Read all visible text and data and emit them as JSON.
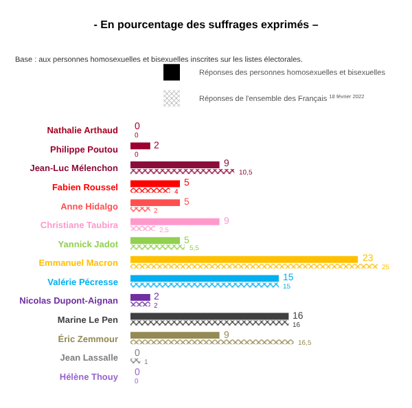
{
  "chart_data": {
    "type": "bar",
    "orientation": "horizontal",
    "title": "- En pourcentage des suffrages exprimés –",
    "annotations": [
      "Base : aux personnes homosexuelles et bisexuelles inscrites sur les listes électorales."
    ],
    "categories": [
      "Nathalie Arthaud",
      "Philippe Poutou",
      "Jean-Luc Mélenchon",
      "Fabien Roussel",
      "Anne Hidalgo",
      "Christiane Taubira",
      "Yannick Jadot",
      "Emmanuel Macron",
      "Valérie Pécresse",
      "Nicolas Dupont-Aignan",
      "Marine Le Pen",
      "Éric Zemmour",
      "Jean Lassalle",
      "Hélène Thouy"
    ],
    "legend": "top right",
    "data_labels": true,
    "series": [
      {
        "name": "Réponses des personnes homosexuelles et bisexuelles",
        "color": "#000000",
        "colors": [
          "#a50021",
          "#9b0030",
          "#8b0d3a",
          "#ff0000",
          "#ff5050",
          "#ff99cc",
          "#92d050",
          "#ffc000",
          "#00b0f0",
          "#7030a0",
          "#404040",
          "#948a54",
          "#7f7f7f",
          "#9966cc"
        ],
        "values": [
          0,
          2,
          9,
          5,
          5,
          9,
          5,
          23,
          15,
          2,
          16,
          9,
          0,
          0
        ],
        "value_labels": [
          "0",
          "2",
          "9",
          "5",
          "5",
          "9",
          "5",
          "23",
          "15",
          "2",
          "16",
          "9",
          "0",
          "0"
        ]
      },
      {
        "name": "Réponses de l'ensemble des Français $^{18 février 2022}$",
        "color": "#999999",
        "colors": [
          "#a50021",
          "#9b0030",
          "#8b0d3a",
          "#ff0000",
          "#ff5050",
          "#ff99cc",
          "#92d050",
          "#ffc000",
          "#00b0f0",
          "#7030a0",
          "#404040",
          "#948a54",
          "#7f7f7f",
          "#9966cc"
        ],
        "values": [
          0,
          0,
          10.5,
          4,
          2,
          2.5,
          5.5,
          25,
          15,
          2,
          16,
          16.5,
          1,
          0
        ],
        "value_labels": [
          "0",
          "0",
          "10,5",
          "4",
          "2",
          "2,5",
          "5,5",
          "25",
          "15",
          "2",
          "16",
          "16,5",
          "1",
          "0"
        ]
      }
    ]
  }
}
